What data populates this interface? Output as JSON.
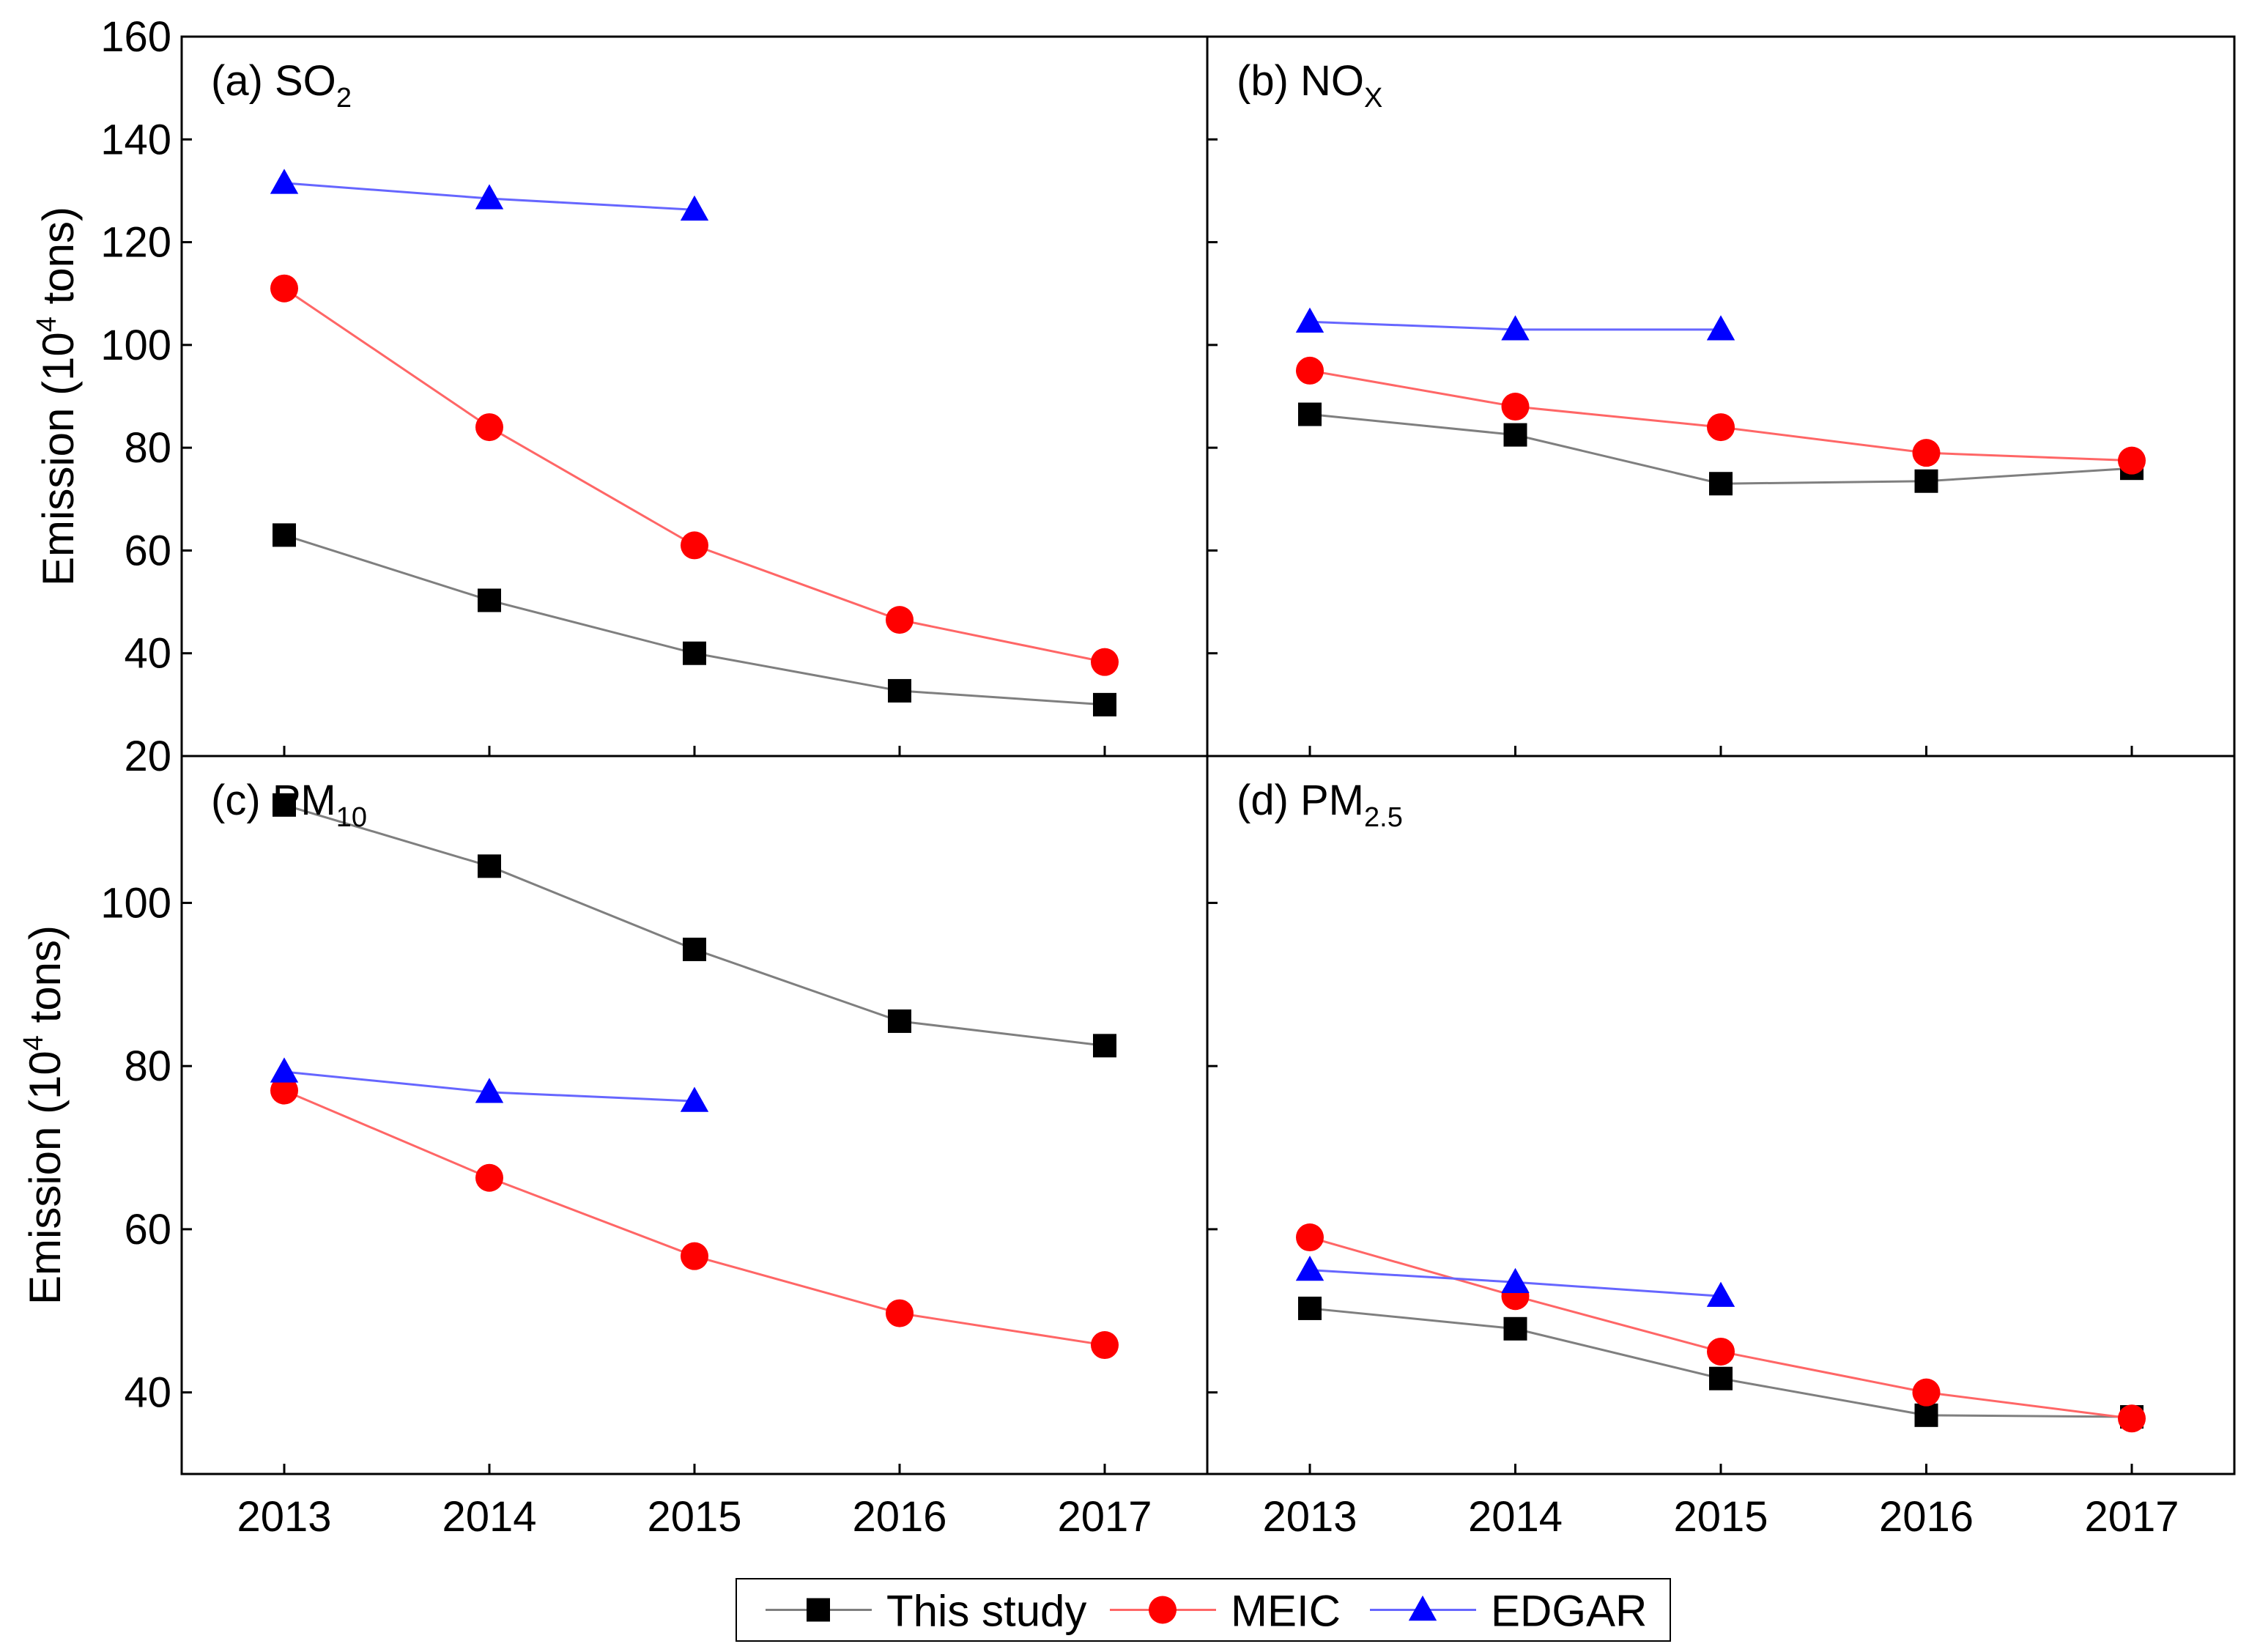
{
  "chart_data": {
    "type": "line",
    "x": [
      2013,
      2014,
      2015,
      2016,
      2017
    ],
    "x_tick_labels": [
      "2013",
      "2014",
      "2015",
      "2016",
      "2017"
    ],
    "series_styles": [
      {
        "name": "This study",
        "marker": "square",
        "color": "#000000",
        "line_color": "#7f7f7f"
      },
      {
        "name": "MEIC",
        "marker": "circle",
        "color": "#ff0000",
        "line_color": "#ff6666"
      },
      {
        "name": "EDGAR",
        "marker": "triangle",
        "color": "#0000ff",
        "line_color": "#6666ff"
      }
    ],
    "legend": {
      "position": "bottom-center",
      "entries": [
        "This study",
        "MEIC",
        "EDGAR"
      ]
    },
    "ylabel": {
      "prefix": "Emission (10",
      "sup": "4",
      "suffix": " tons)"
    },
    "panels": [
      {
        "id": "a",
        "label": {
          "prefix": "(a) SO",
          "sub": "2"
        },
        "ylim": [
          20,
          160
        ],
        "yticks": [
          20,
          40,
          60,
          80,
          100,
          120,
          140,
          160
        ],
        "ytick_labels": [
          "20",
          "40",
          "60",
          "80",
          "100",
          "120",
          "140",
          "160"
        ],
        "series": [
          {
            "name": "This study",
            "values": [
              63.0,
              50.3,
              40.0,
              32.7,
              30.0
            ]
          },
          {
            "name": "MEIC",
            "values": [
              111.0,
              84.0,
              61.0,
              46.5,
              38.3
            ]
          },
          {
            "name": "EDGAR",
            "values": [
              131.5,
              128.5,
              126.3
            ]
          }
        ]
      },
      {
        "id": "b",
        "label": {
          "prefix": "(b) NO",
          "sub": "X"
        },
        "ylim": [
          20,
          160
        ],
        "yticks": [
          20,
          40,
          60,
          80,
          100,
          120,
          140,
          160
        ],
        "ytick_labels": [],
        "series": [
          {
            "name": "This study",
            "values": [
              86.5,
              82.5,
              73.0,
              73.5,
              76.0
            ]
          },
          {
            "name": "MEIC",
            "values": [
              95.0,
              88.0,
              84.0,
              79.0,
              77.5
            ]
          },
          {
            "name": "EDGAR",
            "values": [
              104.5,
              103.0,
              103.0
            ]
          }
        ]
      },
      {
        "id": "c",
        "label": {
          "prefix": "(c) PM",
          "sub": "10"
        },
        "ylim": [
          30,
          118
        ],
        "yticks": [
          40,
          60,
          80,
          100
        ],
        "ytick_labels": [
          "40",
          "60",
          "80",
          "100"
        ],
        "series": [
          {
            "name": "This study",
            "values": [
              112.0,
              104.5,
              94.3,
              85.5,
              82.5
            ]
          },
          {
            "name": "MEIC",
            "values": [
              77.0,
              66.3,
              56.7,
              49.7,
              45.8
            ]
          },
          {
            "name": "EDGAR",
            "values": [
              79.3,
              76.8,
              75.7
            ]
          }
        ]
      },
      {
        "id": "d",
        "label": {
          "prefix": "(d) PM",
          "sub": "2.5"
        },
        "ylim": [
          30,
          118
        ],
        "yticks": [
          40,
          60,
          80,
          100
        ],
        "ytick_labels": [],
        "series": [
          {
            "name": "This study",
            "values": [
              50.3,
              47.8,
              41.7,
              37.2,
              37.0
            ]
          },
          {
            "name": "MEIC",
            "values": [
              59.0,
              51.8,
              45.0,
              40.0,
              36.8
            ]
          },
          {
            "name": "EDGAR",
            "values": [
              55.0,
              53.5,
              51.8
            ]
          }
        ]
      }
    ]
  }
}
